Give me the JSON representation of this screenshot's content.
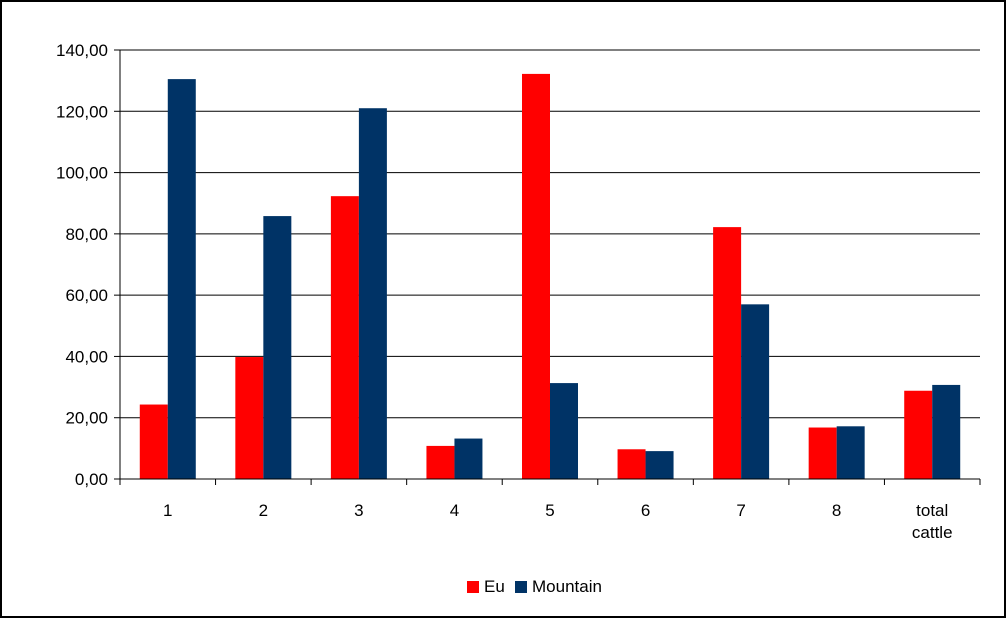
{
  "chart_data": {
    "type": "bar",
    "categories": [
      "1",
      "2",
      "3",
      "4",
      "5",
      "6",
      "7",
      "8",
      "total\ncattle"
    ],
    "series": [
      {
        "name": "Eu",
        "color": "#ff0000",
        "values": [
          24.3,
          39.8,
          92.3,
          10.8,
          132.2,
          9.7,
          82.2,
          16.8,
          28.8
        ]
      },
      {
        "name": "Mountain",
        "color": "#003366",
        "values": [
          130.5,
          85.8,
          121.0,
          13.2,
          31.3,
          9.1,
          57.0,
          17.2,
          30.7
        ]
      }
    ],
    "title": "",
    "xlabel": "",
    "ylabel": "",
    "ylim": [
      0,
      140
    ],
    "yticks": [
      "0,00",
      "20,00",
      "40,00",
      "60,00",
      "80,00",
      "100,00",
      "120,00",
      "140,00"
    ],
    "grid": true,
    "legend_position": "bottom"
  }
}
